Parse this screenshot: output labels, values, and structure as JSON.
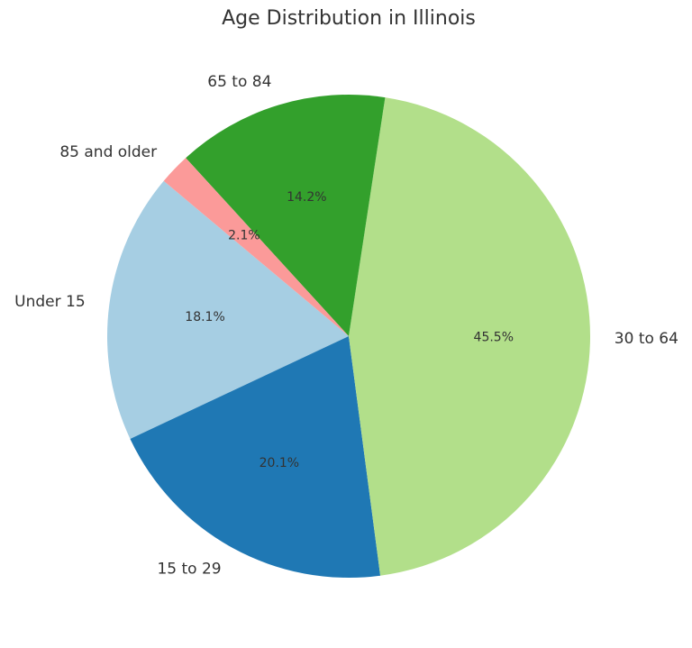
{
  "chart_data": {
    "type": "pie",
    "title": "Age Distribution in Illinois",
    "categories": [
      "Under 15",
      "15 to 29",
      "30 to 64",
      "65 to 84",
      "85 and older"
    ],
    "values": [
      18.1,
      20.1,
      45.5,
      14.2,
      2.1
    ],
    "value_labels": [
      "18.1%",
      "20.1%",
      "45.5%",
      "14.2%",
      "2.1%"
    ],
    "colors": [
      "#a6cee3",
      "#1f78b4",
      "#b2df8a",
      "#33a02c",
      "#fb9a99"
    ]
  }
}
